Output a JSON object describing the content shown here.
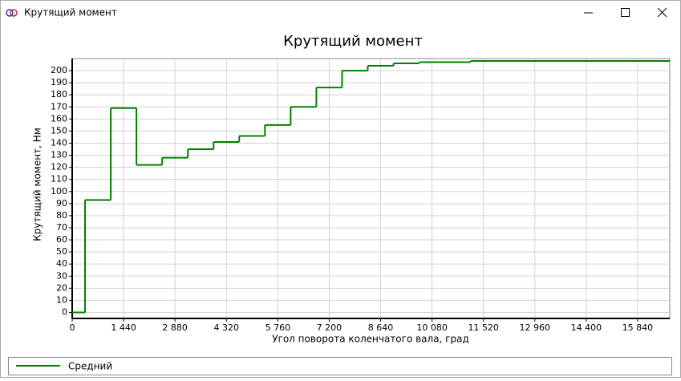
{
  "window": {
    "title": "Крутящий момент"
  },
  "chart_data": {
    "type": "step",
    "title": "Крутящий момент",
    "x_label": "Угол поворота коленчатого вала, град",
    "y_label": "Крутящий момент, Нм",
    "x": [
      0,
      360,
      1080,
      1800,
      2520,
      3240,
      3960,
      4680,
      5400,
      6120,
      6840,
      7560,
      8280,
      9000,
      9720,
      11160
    ],
    "series": [
      {
        "name": "Средний",
        "color": "#008000",
        "values": [
          0,
          93,
          169,
          122,
          128,
          135,
          141,
          146,
          155,
          170,
          186,
          200,
          204,
          206,
          207,
          208
        ]
      }
    ],
    "xlim": [
      0,
      16740
    ],
    "ylim": [
      -5,
      210
    ],
    "xticks": [
      0,
      {
        "value": 1440,
        "label": "1 440"
      },
      {
        "value": 2880,
        "label": "2 880"
      },
      {
        "value": 4320,
        "label": "4 320"
      },
      {
        "value": 5760,
        "label": "5 760"
      },
      {
        "value": 7200,
        "label": "7 200"
      },
      {
        "value": 8640,
        "label": "8 640"
      },
      {
        "value": 10080,
        "label": "10 080"
      },
      {
        "value": 11520,
        "label": "11 520"
      },
      {
        "value": 12960,
        "label": "12 960"
      },
      {
        "value": 14400,
        "label": "14 400"
      },
      {
        "value": 15840,
        "label": "15 840"
      }
    ],
    "yticks": [
      0,
      10,
      20,
      30,
      40,
      50,
      60,
      70,
      80,
      90,
      100,
      110,
      120,
      130,
      140,
      150,
      160,
      170,
      180,
      190,
      200
    ],
    "grid": true,
    "legend": "bottom"
  }
}
